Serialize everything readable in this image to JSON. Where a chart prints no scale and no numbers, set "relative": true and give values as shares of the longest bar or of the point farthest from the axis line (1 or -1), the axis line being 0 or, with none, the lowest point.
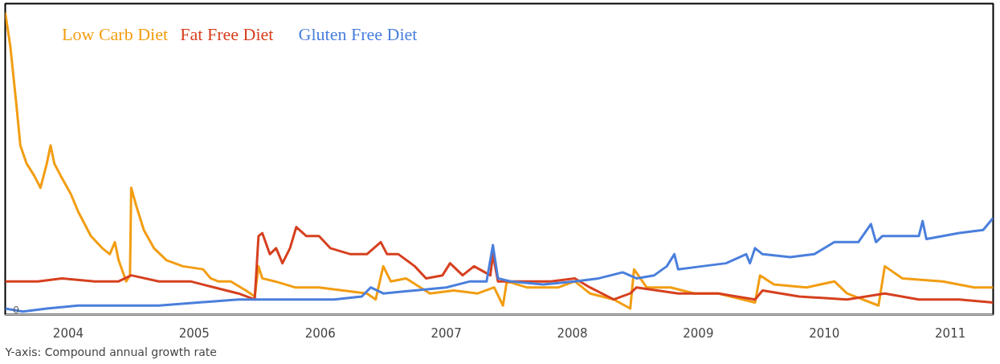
{
  "chart_data": {
    "type": "line",
    "relative": true,
    "legend": "top left",
    "grid": false,
    "line_style": "solid",
    "marker": "none",
    "xlim": [
      2004,
      2011.84
    ],
    "xticks": [
      {
        "value": 2004.5,
        "label": "2004"
      },
      {
        "value": 2005.5,
        "label": "2005"
      },
      {
        "value": 2006.5,
        "label": "2006"
      },
      {
        "value": 2007.5,
        "label": "2007"
      },
      {
        "value": 2008.5,
        "label": "2008"
      },
      {
        "value": 2009.5,
        "label": "2009"
      },
      {
        "value": 2010.5,
        "label": "2010"
      },
      {
        "value": 2011.5,
        "label": "2011"
      }
    ],
    "annotations": [
      "0",
      "Y-axis: Compound annual growth rate"
    ],
    "series": [
      {
        "name": "Low Carb Diet",
        "color": "#f29d12",
        "x": [
          2004.0,
          2004.04,
          2004.09,
          2004.12,
          2004.17,
          2004.23,
          2004.28,
          2004.33,
          2004.36,
          2004.39,
          2004.44,
          2004.52,
          2004.58,
          2004.68,
          2004.77,
          2004.83,
          2004.87,
          2004.9,
          2004.96,
          2004.99,
          2005.0,
          2005.04,
          2005.1,
          2005.18,
          2005.28,
          2005.41,
          2005.57,
          2005.63,
          2005.69,
          2005.79,
          2005.91,
          2005.98,
          2006.01,
          2006.04,
          2006.14,
          2006.3,
          2006.49,
          2006.68,
          2006.87,
          2006.94,
          2007.0,
          2007.06,
          2007.18,
          2007.37,
          2007.56,
          2007.75,
          2007.88,
          2007.95,
          2007.98,
          2008.14,
          2008.39,
          2008.52,
          2008.64,
          2008.83,
          2008.96,
          2008.99,
          2009.09,
          2009.28,
          2009.47,
          2009.66,
          2009.95,
          2009.99,
          2010.1,
          2010.36,
          2010.58,
          2010.68,
          2010.93,
          2010.98,
          2011.12,
          2011.44,
          2011.69,
          2011.84
        ],
        "values": [
          1.0,
          0.89,
          0.69,
          0.56,
          0.5,
          0.46,
          0.42,
          0.5,
          0.56,
          0.5,
          0.46,
          0.4,
          0.34,
          0.26,
          0.22,
          0.2,
          0.24,
          0.18,
          0.11,
          0.13,
          0.42,
          0.36,
          0.28,
          0.22,
          0.18,
          0.16,
          0.15,
          0.12,
          0.11,
          0.11,
          0.08,
          0.06,
          0.16,
          0.12,
          0.11,
          0.09,
          0.09,
          0.08,
          0.07,
          0.05,
          0.16,
          0.11,
          0.12,
          0.07,
          0.08,
          0.07,
          0.09,
          0.03,
          0.11,
          0.09,
          0.09,
          0.11,
          0.07,
          0.05,
          0.02,
          0.15,
          0.09,
          0.09,
          0.07,
          0.07,
          0.04,
          0.13,
          0.1,
          0.09,
          0.11,
          0.07,
          0.03,
          0.16,
          0.12,
          0.11,
          0.09,
          0.09
        ]
      },
      {
        "name": "Fat Free Diet",
        "color": "#d6401f",
        "x": [
          2004.0,
          2004.26,
          2004.45,
          2004.71,
          2004.9,
          2005.0,
          2005.22,
          2005.47,
          2005.66,
          2005.85,
          2005.98,
          2006.01,
          2006.04,
          2006.1,
          2006.15,
          2006.2,
          2006.26,
          2006.31,
          2006.39,
          2006.49,
          2006.58,
          2006.74,
          2006.87,
          2006.98,
          2007.03,
          2007.12,
          2007.25,
          2007.34,
          2007.47,
          2007.53,
          2007.63,
          2007.72,
          2007.85,
          2007.87,
          2007.91,
          2008.01,
          2008.14,
          2008.33,
          2008.52,
          2008.64,
          2008.83,
          2008.96,
          2009.01,
          2009.34,
          2009.66,
          2009.95,
          2010.01,
          2010.3,
          2010.68,
          2010.98,
          2011.25,
          2011.57,
          2011.84
        ],
        "values": [
          0.11,
          0.11,
          0.12,
          0.11,
          0.11,
          0.13,
          0.11,
          0.11,
          0.09,
          0.07,
          0.05,
          0.26,
          0.27,
          0.2,
          0.22,
          0.17,
          0.22,
          0.29,
          0.26,
          0.26,
          0.22,
          0.2,
          0.2,
          0.24,
          0.2,
          0.2,
          0.16,
          0.12,
          0.13,
          0.17,
          0.13,
          0.16,
          0.13,
          0.2,
          0.11,
          0.11,
          0.11,
          0.11,
          0.12,
          0.09,
          0.05,
          0.07,
          0.09,
          0.07,
          0.07,
          0.05,
          0.08,
          0.06,
          0.05,
          0.07,
          0.05,
          0.05,
          0.04
        ]
      },
      {
        "name": "Gluten Free Diet",
        "color": "#4a7fdc",
        "x": [
          2004.0,
          2004.14,
          2004.33,
          2004.58,
          2004.9,
          2005.22,
          2005.53,
          2005.85,
          2006.04,
          2006.36,
          2006.61,
          2006.83,
          2006.9,
          2007.0,
          2007.25,
          2007.5,
          2007.69,
          2007.82,
          2007.87,
          2007.91,
          2008.01,
          2008.27,
          2008.52,
          2008.71,
          2008.9,
          2009.01,
          2009.15,
          2009.25,
          2009.31,
          2009.34,
          2009.53,
          2009.72,
          2009.88,
          2009.91,
          2009.95,
          2010.01,
          2010.23,
          2010.42,
          2010.58,
          2010.77,
          2010.87,
          2010.91,
          2010.96,
          2011.25,
          2011.28,
          2011.31,
          2011.57,
          2011.76,
          2011.84
        ],
        "values": [
          0.02,
          0.01,
          0.02,
          0.03,
          0.03,
          0.03,
          0.04,
          0.05,
          0.05,
          0.05,
          0.05,
          0.06,
          0.09,
          0.07,
          0.08,
          0.09,
          0.11,
          0.11,
          0.23,
          0.12,
          0.11,
          0.1,
          0.11,
          0.12,
          0.14,
          0.12,
          0.13,
          0.16,
          0.2,
          0.15,
          0.16,
          0.17,
          0.2,
          0.17,
          0.22,
          0.2,
          0.19,
          0.2,
          0.24,
          0.24,
          0.3,
          0.24,
          0.26,
          0.26,
          0.31,
          0.25,
          0.27,
          0.28,
          0.32
        ]
      }
    ]
  }
}
